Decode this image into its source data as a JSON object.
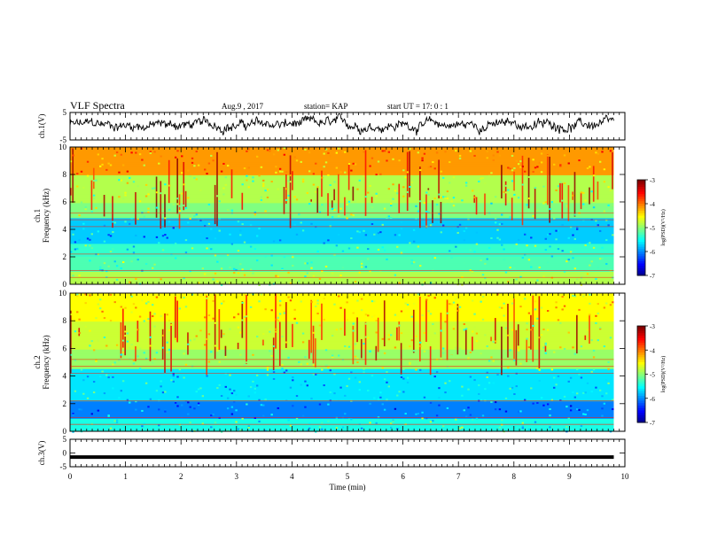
{
  "header": {
    "title": "VLF Spectra",
    "date": "Aug.9  , 2017",
    "station": "station= KAP",
    "start": "start  UT =   17: 0  : 1"
  },
  "chart_data": [
    {
      "type": "line",
      "name": "ch1-waveform",
      "ylabel": "ch.1(V)",
      "ylim": [
        -5,
        5
      ],
      "yticks": [
        "5",
        "-5"
      ],
      "xlim": [
        0,
        10
      ],
      "x_extent_min": [
        0,
        9.8
      ],
      "approx_level_V": 0.5,
      "approx_fluctuation_V": 2.5
    },
    {
      "type": "heatmap",
      "name": "ch1-spectrogram",
      "ylabel_channel": "ch.1",
      "ylabel": "Frequency  (kHz)",
      "ylim": [
        0,
        10
      ],
      "yticks": [
        "0",
        "2",
        "4",
        "6",
        "8",
        "10"
      ],
      "xlim": [
        0,
        10
      ],
      "x_extent_min": [
        0,
        9.8
      ],
      "colorbar": {
        "label": "log(PSD)(V²/Hz)",
        "range": [
          -7,
          -3
        ],
        "ticks": [
          "-3",
          "-4",
          "-5",
          "-6",
          "-7"
        ]
      },
      "bands_kHz": [
        {
          "from": 0,
          "to": 1,
          "log_psd": -4.8
        },
        {
          "from": 1,
          "to": 2,
          "log_psd": -5.2
        },
        {
          "from": 2,
          "to": 3,
          "log_psd": -5.3
        },
        {
          "from": 3,
          "to": 4.8,
          "log_psd": -5.7
        },
        {
          "from": 4.8,
          "to": 6,
          "log_psd": -5.0
        },
        {
          "from": 6,
          "to": 8,
          "log_psd": -4.8
        },
        {
          "from": 8,
          "to": 10,
          "log_psd": -4.1
        }
      ]
    },
    {
      "type": "heatmap",
      "name": "ch2-spectrogram",
      "ylabel_channel": "ch.2",
      "ylabel": "Frequency  (kHz)",
      "ylim": [
        0,
        10
      ],
      "yticks": [
        "0",
        "2",
        "4",
        "6",
        "8",
        "10"
      ],
      "xlim": [
        0,
        10
      ],
      "x_extent_min": [
        0,
        9.8
      ],
      "colorbar": {
        "label": "log(PSD)(V²/Hz)",
        "range": [
          -7,
          -3
        ],
        "ticks": [
          "-3",
          "-4",
          "-5",
          "-6",
          "-7"
        ]
      },
      "bands_kHz": [
        {
          "from": 0,
          "to": 1,
          "log_psd": -5.4
        },
        {
          "from": 1,
          "to": 2.2,
          "log_psd": -6.0
        },
        {
          "from": 2.2,
          "to": 4.5,
          "log_psd": -5.6
        },
        {
          "from": 4.5,
          "to": 6,
          "log_psd": -4.9
        },
        {
          "from": 6,
          "to": 8,
          "log_psd": -4.7
        },
        {
          "from": 8,
          "to": 10,
          "log_psd": -4.5
        }
      ]
    },
    {
      "type": "line",
      "name": "ch3-waveform",
      "ylabel": "ch.3(V)",
      "ylim": [
        -5,
        5
      ],
      "yticks": [
        "5",
        "0",
        "-5"
      ],
      "xlim": [
        0,
        10
      ],
      "x_extent_min": [
        0,
        9.8
      ],
      "approx_level_V": -1.5,
      "xlabel": "Time  (min)",
      "xticks": [
        "0",
        "1",
        "2",
        "3",
        "4",
        "5",
        "6",
        "7",
        "8",
        "9",
        "10"
      ]
    }
  ]
}
